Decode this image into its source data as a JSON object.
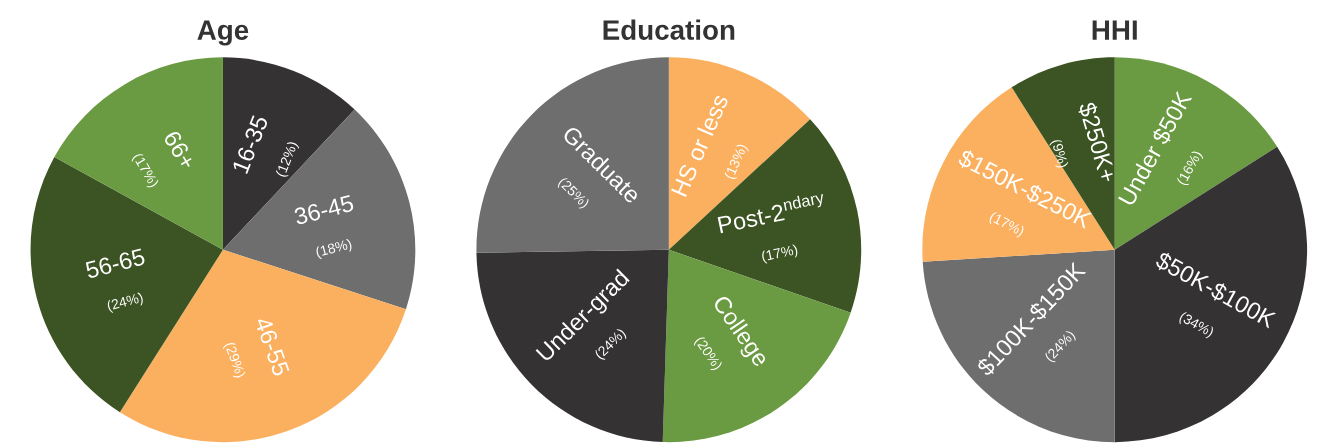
{
  "chart_data": [
    {
      "type": "pie",
      "title": "Age",
      "categories": [
        "16-35",
        "36-45",
        "46-55",
        "56-65",
        "66+"
      ],
      "values": [
        12,
        18,
        29,
        24,
        17
      ],
      "value_labels": [
        "(12%)",
        "(18%)",
        "(29%)",
        "(24%)",
        "(17%)"
      ],
      "colors": [
        "#343233",
        "#6e6e6e",
        "#fbb060",
        "#3c5423",
        "#6a9a41"
      ]
    },
    {
      "type": "pie",
      "title": "Education",
      "categories": [
        "HS or less",
        "Post-2$^{ndary}$",
        "College",
        "Under-grad",
        "Graduate"
      ],
      "values": [
        13,
        17,
        20,
        24,
        25
      ],
      "value_labels": [
        "(13%)",
        "(17%)",
        "(20%)",
        "(24%)",
        "(25%)"
      ],
      "colors": [
        "#fbb060",
        "#3c5423",
        "#6a9a41",
        "#343233",
        "#6e6e6e"
      ]
    },
    {
      "type": "pie",
      "title": "HHI",
      "categories": [
        "Under $50K",
        "$50K-$100K",
        "$100K-$150K",
        "$150K-$250K",
        "$250K+"
      ],
      "values": [
        16,
        34,
        24,
        17,
        9
      ],
      "value_labels": [
        "(16%)",
        "(34%)",
        "(24%)",
        "(17%)",
        "(9%)"
      ],
      "colors": [
        "#6a9a41",
        "#343233",
        "#6e6e6e",
        "#fbb060",
        "#3c5423"
      ]
    }
  ]
}
